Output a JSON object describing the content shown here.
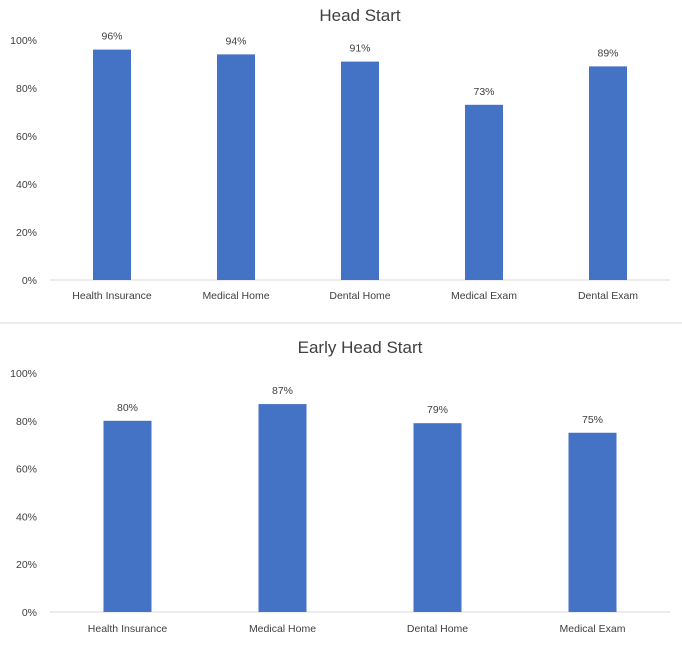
{
  "chart_data": [
    {
      "type": "bar",
      "title": "Head Start",
      "categories": [
        "Health Insurance",
        "Medical Home",
        "Dental Home",
        "Medical Exam",
        "Dental Exam"
      ],
      "values": [
        96,
        94,
        91,
        73,
        89
      ],
      "data_labels": [
        "96%",
        "94%",
        "91%",
        "73%",
        "89%"
      ],
      "yticks": [
        "0%",
        "20%",
        "40%",
        "60%",
        "80%",
        "100%"
      ],
      "ylim": [
        0,
        100
      ],
      "grid": false,
      "color": "#4472c4"
    },
    {
      "type": "bar",
      "title": "Early Head Start",
      "categories": [
        "Health Insurance",
        "Medical Home",
        "Dental Home",
        "Medical Exam"
      ],
      "values": [
        80,
        87,
        79,
        75
      ],
      "data_labels": [
        "80%",
        "87%",
        "79%",
        "75%"
      ],
      "yticks": [
        "0%",
        "20%",
        "40%",
        "60%",
        "80%",
        "100%"
      ],
      "ylim": [
        0,
        100
      ],
      "grid": false,
      "color": "#4472c4"
    }
  ]
}
